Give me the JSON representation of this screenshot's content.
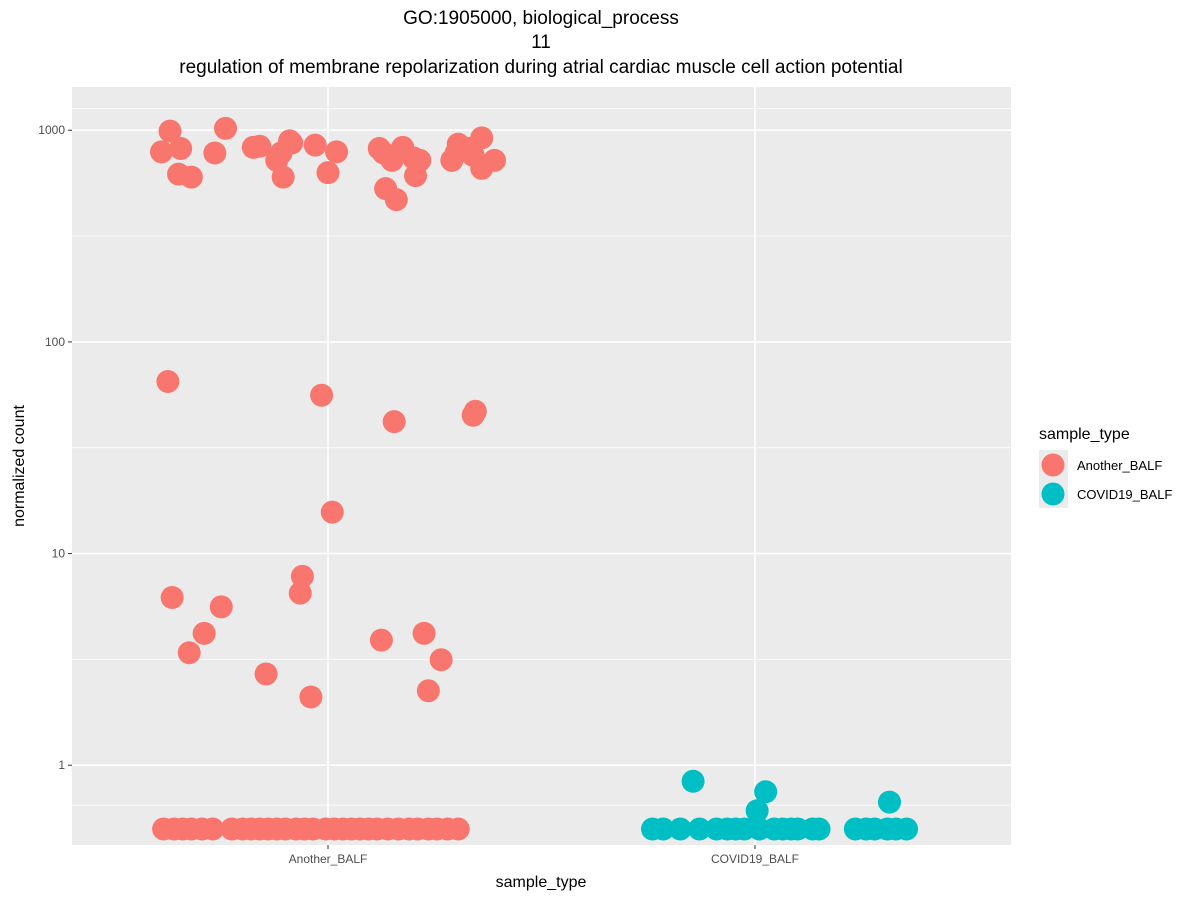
{
  "chart_data": {
    "type": "scatter",
    "title_lines": [
      "GO:1905000, biological_process",
      "11",
      "regulation of membrane repolarization during atrial cardiac muscle cell action potential"
    ],
    "xlabel": "sample_type",
    "ylabel": "normalized count",
    "y_scale": "log10",
    "ylim": [
      0.42,
      1600
    ],
    "y_ticks": [
      1,
      10,
      100,
      1000
    ],
    "y_tick_labels": [
      "1",
      "10",
      "100",
      "1000"
    ],
    "categories": [
      "Another_BALF",
      "COVID19_BALF"
    ],
    "grid": true,
    "legend": {
      "title": "sample_type",
      "position": "right",
      "entries": [
        "Another_BALF",
        "COVID19_BALF"
      ]
    },
    "colors": {
      "Another_BALF": "#F8766D",
      "COVID19_BALF": "#00BFC4"
    },
    "series": [
      {
        "name": "Another_BALF",
        "points": [
          {
            "x": -0.39,
            "y": 790
          },
          {
            "x": -0.37,
            "y": 990
          },
          {
            "x": -0.35,
            "y": 620
          },
          {
            "x": -0.345,
            "y": 820
          },
          {
            "x": -0.32,
            "y": 600
          },
          {
            "x": -0.265,
            "y": 780
          },
          {
            "x": -0.24,
            "y": 1020
          },
          {
            "x": -0.175,
            "y": 830
          },
          {
            "x": -0.16,
            "y": 840
          },
          {
            "x": -0.12,
            "y": 720
          },
          {
            "x": -0.11,
            "y": 780
          },
          {
            "x": -0.105,
            "y": 600
          },
          {
            "x": -0.09,
            "y": 890
          },
          {
            "x": -0.085,
            "y": 870
          },
          {
            "x": -0.03,
            "y": 850
          },
          {
            "x": 0.0,
            "y": 630
          },
          {
            "x": 0.02,
            "y": 790
          },
          {
            "x": 0.12,
            "y": 820
          },
          {
            "x": 0.13,
            "y": 780
          },
          {
            "x": 0.135,
            "y": 530
          },
          {
            "x": 0.15,
            "y": 720
          },
          {
            "x": 0.16,
            "y": 470
          },
          {
            "x": 0.175,
            "y": 830
          },
          {
            "x": 0.2,
            "y": 740
          },
          {
            "x": 0.205,
            "y": 610
          },
          {
            "x": 0.215,
            "y": 720
          },
          {
            "x": 0.29,
            "y": 720
          },
          {
            "x": 0.3,
            "y": 780
          },
          {
            "x": 0.305,
            "y": 860
          },
          {
            "x": 0.33,
            "y": 820
          },
          {
            "x": 0.34,
            "y": 760
          },
          {
            "x": 0.36,
            "y": 920
          },
          {
            "x": 0.36,
            "y": 660
          },
          {
            "x": 0.39,
            "y": 720
          },
          {
            "x": -0.375,
            "y": 65
          },
          {
            "x": -0.015,
            "y": 56
          },
          {
            "x": 0.155,
            "y": 42
          },
          {
            "x": 0.34,
            "y": 45
          },
          {
            "x": 0.345,
            "y": 47
          },
          {
            "x": 0.01,
            "y": 15.7
          },
          {
            "x": -0.365,
            "y": 6.2
          },
          {
            "x": -0.325,
            "y": 3.4
          },
          {
            "x": -0.29,
            "y": 4.2
          },
          {
            "x": -0.25,
            "y": 5.6
          },
          {
            "x": -0.145,
            "y": 2.7
          },
          {
            "x": -0.065,
            "y": 6.5
          },
          {
            "x": -0.06,
            "y": 7.8
          },
          {
            "x": -0.04,
            "y": 2.1
          },
          {
            "x": 0.125,
            "y": 3.9
          },
          {
            "x": 0.225,
            "y": 4.2
          },
          {
            "x": 0.235,
            "y": 2.25
          },
          {
            "x": 0.265,
            "y": 3.15
          },
          {
            "x": -0.385,
            "y": 0.5
          },
          {
            "x": -0.36,
            "y": 0.5
          },
          {
            "x": -0.34,
            "y": 0.5
          },
          {
            "x": -0.32,
            "y": 0.5
          },
          {
            "x": -0.295,
            "y": 0.5
          },
          {
            "x": -0.27,
            "y": 0.5
          },
          {
            "x": -0.225,
            "y": 0.5
          },
          {
            "x": -0.2,
            "y": 0.5
          },
          {
            "x": -0.18,
            "y": 0.5
          },
          {
            "x": -0.16,
            "y": 0.5
          },
          {
            "x": -0.14,
            "y": 0.5
          },
          {
            "x": -0.12,
            "y": 0.5
          },
          {
            "x": -0.1,
            "y": 0.5
          },
          {
            "x": -0.075,
            "y": 0.5
          },
          {
            "x": -0.055,
            "y": 0.5
          },
          {
            "x": -0.035,
            "y": 0.5
          },
          {
            "x": -0.005,
            "y": 0.5
          },
          {
            "x": 0.015,
            "y": 0.5
          },
          {
            "x": 0.035,
            "y": 0.5
          },
          {
            "x": 0.055,
            "y": 0.5
          },
          {
            "x": 0.075,
            "y": 0.5
          },
          {
            "x": 0.095,
            "y": 0.5
          },
          {
            "x": 0.115,
            "y": 0.5
          },
          {
            "x": 0.14,
            "y": 0.5
          },
          {
            "x": 0.165,
            "y": 0.5
          },
          {
            "x": 0.19,
            "y": 0.5
          },
          {
            "x": 0.21,
            "y": 0.5
          },
          {
            "x": 0.235,
            "y": 0.5
          },
          {
            "x": 0.255,
            "y": 0.5
          },
          {
            "x": 0.28,
            "y": 0.5
          },
          {
            "x": 0.305,
            "y": 0.5
          }
        ]
      },
      {
        "name": "COVID19_BALF",
        "points": [
          {
            "x": 0.76,
            "y": 0.5
          },
          {
            "x": 0.785,
            "y": 0.5
          },
          {
            "x": 0.825,
            "y": 0.5
          },
          {
            "x": 0.855,
            "y": 0.84
          },
          {
            "x": 0.87,
            "y": 0.5
          },
          {
            "x": 0.91,
            "y": 0.5
          },
          {
            "x": 0.935,
            "y": 0.5
          },
          {
            "x": 0.955,
            "y": 0.5
          },
          {
            "x": 0.975,
            "y": 0.5
          },
          {
            "x": 1.005,
            "y": 0.61
          },
          {
            "x": 1.01,
            "y": 0.5
          },
          {
            "x": 1.025,
            "y": 0.75
          },
          {
            "x": 1.045,
            "y": 0.5
          },
          {
            "x": 1.065,
            "y": 0.5
          },
          {
            "x": 1.085,
            "y": 0.5
          },
          {
            "x": 1.1,
            "y": 0.5
          },
          {
            "x": 1.135,
            "y": 0.5
          },
          {
            "x": 1.15,
            "y": 0.5
          },
          {
            "x": 1.235,
            "y": 0.5
          },
          {
            "x": 1.26,
            "y": 0.5
          },
          {
            "x": 1.28,
            "y": 0.5
          },
          {
            "x": 1.31,
            "y": 0.5
          },
          {
            "x": 1.315,
            "y": 0.67
          },
          {
            "x": 1.33,
            "y": 0.5
          },
          {
            "x": 1.355,
            "y": 0.5
          }
        ]
      }
    ]
  }
}
